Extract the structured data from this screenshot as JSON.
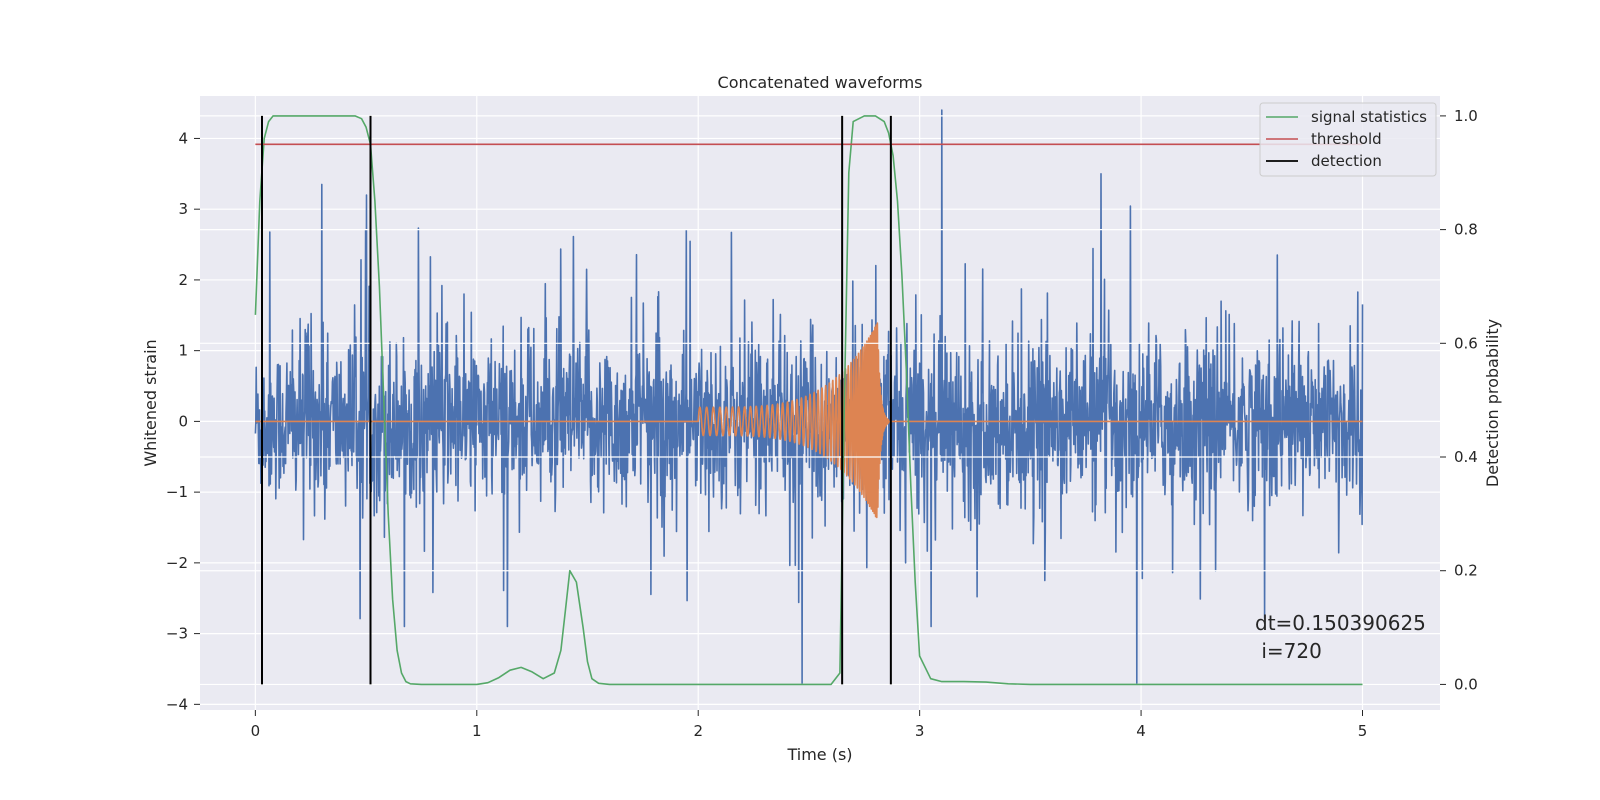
{
  "chart_data": {
    "type": "line",
    "title": "Concatenated waveforms",
    "xlabel": "Time (s)",
    "ylabel": "Whitened strain",
    "y2label": "Detection probability",
    "xlim": [
      -0.25,
      5.35
    ],
    "ylim": [
      -4.08,
      4.6
    ],
    "y2lim": [
      -0.045,
      1.035
    ],
    "x_ticks": [
      0,
      1,
      2,
      3,
      4,
      5
    ],
    "y_ticks": [
      -4,
      -3,
      -2,
      -1,
      0,
      1,
      2,
      3,
      4
    ],
    "y2_ticks": [
      0.0,
      0.2,
      0.4,
      0.6,
      0.8,
      1.0
    ],
    "x_tick_labels": [
      "0",
      "1",
      "2",
      "3",
      "4",
      "5"
    ],
    "y_tick_labels": [
      "−4",
      "−3",
      "−2",
      "−1",
      "0",
      "1",
      "2",
      "3",
      "4"
    ],
    "y2_tick_labels": [
      "0.0",
      "0.2",
      "0.4",
      "0.6",
      "0.8",
      "1.0"
    ],
    "grid": true,
    "legend_position": "top-right",
    "colors": {
      "background": "#eaeaf2",
      "strain": "#4c72b0",
      "injected": "#dd8452",
      "signal_statistics": "#55a868",
      "threshold": "#c44e52",
      "detection": "#000000",
      "grid": "#ffffff"
    },
    "series": [
      {
        "name": "signal statistics",
        "axis": "right",
        "x": [
          0.0,
          0.02,
          0.04,
          0.06,
          0.08,
          0.1,
          0.15,
          0.2,
          0.3,
          0.4,
          0.45,
          0.48,
          0.5,
          0.52,
          0.54,
          0.56,
          0.58,
          0.6,
          0.62,
          0.64,
          0.66,
          0.68,
          0.7,
          0.75,
          0.8,
          1.0,
          1.05,
          1.1,
          1.15,
          1.2,
          1.25,
          1.3,
          1.35,
          1.38,
          1.4,
          1.42,
          1.45,
          1.48,
          1.5,
          1.52,
          1.55,
          1.6,
          2.0,
          2.5,
          2.6,
          2.64,
          2.66,
          2.68,
          2.7,
          2.75,
          2.8,
          2.84,
          2.86,
          2.88,
          2.9,
          2.92,
          2.94,
          2.96,
          2.98,
          3.0,
          3.05,
          3.1,
          3.2,
          3.3,
          3.4,
          3.5,
          4.0,
          4.5,
          5.0
        ],
        "y": [
          0.65,
          0.85,
          0.96,
          0.99,
          1.0,
          1.0,
          1.0,
          1.0,
          1.0,
          1.0,
          1.0,
          0.995,
          0.98,
          0.95,
          0.85,
          0.7,
          0.5,
          0.3,
          0.15,
          0.06,
          0.02,
          0.005,
          0.001,
          0.0,
          0.0,
          0.0,
          0.003,
          0.012,
          0.025,
          0.03,
          0.022,
          0.01,
          0.02,
          0.06,
          0.13,
          0.2,
          0.18,
          0.1,
          0.04,
          0.01,
          0.002,
          0.0,
          0.0,
          0.0,
          0.0,
          0.02,
          0.5,
          0.9,
          0.99,
          1.0,
          1.0,
          0.99,
          0.97,
          0.93,
          0.85,
          0.72,
          0.55,
          0.35,
          0.18,
          0.05,
          0.01,
          0.005,
          0.005,
          0.004,
          0.001,
          0.0,
          0.0,
          0.0,
          0.0
        ]
      },
      {
        "name": "threshold",
        "axis": "right",
        "x": [
          0.0,
          5.0
        ],
        "y": [
          0.95,
          0.95
        ]
      },
      {
        "name": "detection",
        "axis": "right",
        "vlines": [
          0.03,
          0.52,
          2.65,
          2.87
        ],
        "ymin": 0.0,
        "ymax": 1.0
      },
      {
        "name": "",
        "axis": "left",
        "kind": "noise",
        "x_range": [
          0.0,
          5.0
        ],
        "typical_amplitude": 1.1,
        "min": -3.7,
        "max": 4.4,
        "spikes": [
          {
            "x": 0.3,
            "y": 3.35
          },
          {
            "x": 3.1,
            "y": 4.4
          },
          {
            "x": 3.82,
            "y": 3.5
          },
          {
            "x": 2.47,
            "y": -3.7
          },
          {
            "x": 3.98,
            "y": -3.7
          }
        ]
      },
      {
        "name": "",
        "axis": "left",
        "kind": "chirp",
        "x_range": [
          2.0,
          2.86
        ],
        "start_amplitude": 0.2,
        "peak_amplitude": 1.4,
        "peak_time": 2.81
      }
    ],
    "annotations": [
      "dt=0.150390625",
      " i=720"
    ]
  }
}
